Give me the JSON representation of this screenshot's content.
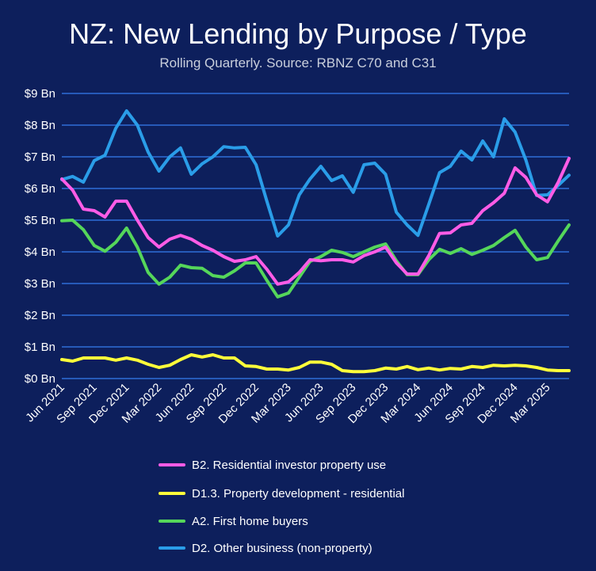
{
  "chart_data": {
    "type": "line",
    "title": "NZ: New Lending by Purpose / Type",
    "subtitle": "Rolling Quarterly. Source: RBNZ C70 and C31",
    "xlabel": "",
    "ylabel": "",
    "ylim": [
      0,
      9
    ],
    "yticks": [
      "$0 Bn",
      "$1 Bn",
      "$2 Bn",
      "$3 Bn",
      "$4 Bn",
      "$5 Bn",
      "$6 Bn",
      "$7 Bn",
      "$8 Bn",
      "$9 Bn"
    ],
    "xtick_labels": [
      "Jun 2021",
      "Sep 2021",
      "Dec 2021",
      "Mar 2022",
      "Jun 2022",
      "Sep 2022",
      "Dec 2022",
      "Mar 2023",
      "Jun 2023",
      "Sep 2023",
      "Dec 2023",
      "Mar 2024",
      "Jun 2024",
      "Sep 2024",
      "Dec 2024",
      "Mar 2025"
    ],
    "x_start": "Jun 2021",
    "x_end": "Jul 2025",
    "grid": true,
    "legend_position": "bottom",
    "series": [
      {
        "name": "B2. Residential investor property use",
        "color": "#ff5ce6",
        "values": [
          6.3,
          5.95,
          5.35,
          5.3,
          5.1,
          5.6,
          5.6,
          5.0,
          4.45,
          4.15,
          4.4,
          4.52,
          4.4,
          4.2,
          4.05,
          3.85,
          3.7,
          3.75,
          3.85,
          3.45,
          2.98,
          3.05,
          3.35,
          3.75,
          3.72,
          3.75,
          3.75,
          3.68,
          3.88,
          4.0,
          4.15,
          3.65,
          3.3,
          3.3,
          3.88,
          4.58,
          4.6,
          4.85,
          4.9,
          5.3,
          5.55,
          5.85,
          6.65,
          6.35,
          5.8,
          5.58,
          6.2,
          6.95
        ]
      },
      {
        "name": "D1.3. Property development - residential",
        "color": "#ffff3a",
        "values": [
          0.6,
          0.55,
          0.65,
          0.65,
          0.65,
          0.58,
          0.65,
          0.58,
          0.45,
          0.35,
          0.42,
          0.6,
          0.75,
          0.68,
          0.75,
          0.65,
          0.65,
          0.4,
          0.38,
          0.3,
          0.3,
          0.27,
          0.35,
          0.52,
          0.52,
          0.45,
          0.25,
          0.22,
          0.22,
          0.25,
          0.33,
          0.3,
          0.38,
          0.28,
          0.33,
          0.27,
          0.32,
          0.3,
          0.38,
          0.35,
          0.42,
          0.4,
          0.42,
          0.4,
          0.35,
          0.27,
          0.25,
          0.25
        ]
      },
      {
        "name": "A2. First home buyers",
        "color": "#55d65a",
        "values": [
          4.98,
          5.0,
          4.7,
          4.2,
          4.02,
          4.3,
          4.75,
          4.15,
          3.35,
          2.98,
          3.2,
          3.58,
          3.5,
          3.48,
          3.25,
          3.2,
          3.4,
          3.65,
          3.65,
          3.1,
          2.58,
          2.7,
          3.2,
          3.7,
          3.85,
          4.05,
          3.98,
          3.85,
          4.0,
          4.15,
          4.25,
          3.72,
          3.28,
          3.28,
          3.75,
          4.08,
          3.95,
          4.1,
          3.92,
          4.05,
          4.2,
          4.45,
          4.68,
          4.15,
          3.75,
          3.82,
          4.35,
          4.85
        ]
      },
      {
        "name": "D2. Other business (non-property)",
        "color": "#2a9de8",
        "values": [
          6.28,
          6.38,
          6.2,
          6.88,
          7.05,
          7.9,
          8.45,
          8.0,
          7.15,
          6.55,
          7.0,
          7.28,
          6.45,
          6.78,
          7.0,
          7.32,
          7.28,
          7.3,
          6.75,
          5.6,
          4.5,
          4.85,
          5.8,
          6.3,
          6.7,
          6.25,
          6.4,
          5.88,
          6.75,
          6.8,
          6.45,
          5.25,
          4.85,
          4.52,
          5.5,
          6.5,
          6.7,
          7.18,
          6.9,
          7.5,
          7.0,
          8.2,
          7.78,
          6.9,
          5.78,
          5.8,
          6.1,
          6.42
        ]
      }
    ]
  }
}
